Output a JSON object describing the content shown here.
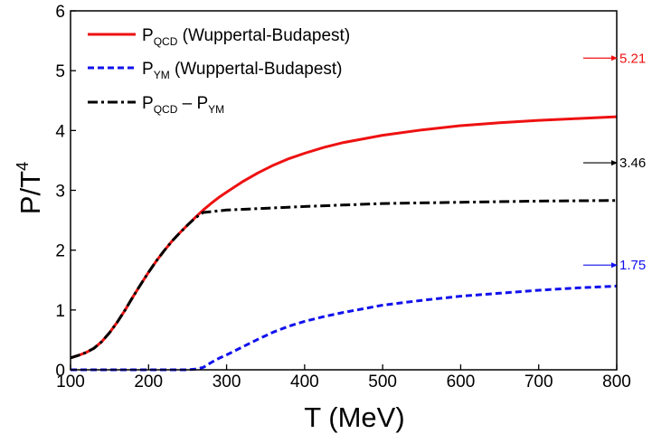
{
  "chart_data": {
    "type": "line",
    "xlabel": "T (MeV)",
    "ylabel_main": "P/T",
    "ylabel_sup": "4",
    "xlim": [
      100,
      800
    ],
    "ylim": [
      0,
      6
    ],
    "xticks": [
      100,
      200,
      300,
      400,
      500,
      600,
      700,
      800
    ],
    "yticks": [
      0,
      1,
      2,
      3,
      4,
      5,
      6
    ],
    "grid": false,
    "legend_position": "top-left",
    "series": [
      {
        "key": "qcd",
        "name_main": "P",
        "name_sub": "QCD",
        "name_rest": " (Wuppertal-Budapest)",
        "color": "#ee1111",
        "dash": "solid",
        "x": [
          100,
          110,
          120,
          130,
          140,
          150,
          160,
          170,
          180,
          190,
          200,
          210,
          220,
          230,
          240,
          250,
          260,
          270,
          280,
          290,
          300,
          320,
          340,
          360,
          380,
          400,
          425,
          450,
          475,
          500,
          550,
          600,
          650,
          700,
          750,
          800
        ],
        "y": [
          0.2,
          0.24,
          0.29,
          0.36,
          0.47,
          0.62,
          0.8,
          1.0,
          1.22,
          1.43,
          1.63,
          1.82,
          1.99,
          2.15,
          2.29,
          2.42,
          2.55,
          2.67,
          2.78,
          2.88,
          2.97,
          3.14,
          3.29,
          3.42,
          3.53,
          3.62,
          3.72,
          3.8,
          3.86,
          3.92,
          4.01,
          4.08,
          4.13,
          4.17,
          4.2,
          4.23
        ]
      },
      {
        "key": "ym",
        "name_main": "P",
        "name_sub": "YM",
        "name_rest": " (Wuppertal-Budapest)",
        "color": "#1111ee",
        "dash": "dashed",
        "x": [
          100,
          150,
          200,
          250,
          260,
          270,
          280,
          290,
          300,
          320,
          340,
          360,
          380,
          400,
          425,
          450,
          475,
          500,
          550,
          600,
          650,
          700,
          750,
          800
        ],
        "y": [
          0.0,
          0.0,
          0.0,
          0.0,
          0.01,
          0.04,
          0.12,
          0.19,
          0.25,
          0.38,
          0.51,
          0.63,
          0.73,
          0.81,
          0.89,
          0.96,
          1.02,
          1.08,
          1.16,
          1.23,
          1.28,
          1.33,
          1.37,
          1.4
        ]
      },
      {
        "key": "diff",
        "name_main": "P",
        "name_sub": "QCD",
        "name_rest": " – P",
        "name_sub2": "YM",
        "color": "#000000",
        "dash": "dashdot",
        "x": [
          100,
          110,
          120,
          130,
          140,
          150,
          160,
          170,
          180,
          190,
          200,
          210,
          220,
          230,
          240,
          250,
          260,
          270,
          300,
          400,
          500,
          600,
          700,
          800
        ],
        "y": [
          0.2,
          0.24,
          0.29,
          0.36,
          0.47,
          0.62,
          0.8,
          1.0,
          1.22,
          1.43,
          1.63,
          1.82,
          1.99,
          2.15,
          2.29,
          2.42,
          2.54,
          2.63,
          2.67,
          2.73,
          2.78,
          2.8,
          2.82,
          2.83
        ]
      }
    ],
    "limit_markers": [
      {
        "value": 5.21,
        "label": "5.21",
        "color": "#ee1111"
      },
      {
        "value": 3.46,
        "label": "3.46",
        "color": "#000000"
      },
      {
        "value": 1.75,
        "label": "1.75",
        "color": "#1111ee"
      }
    ]
  }
}
